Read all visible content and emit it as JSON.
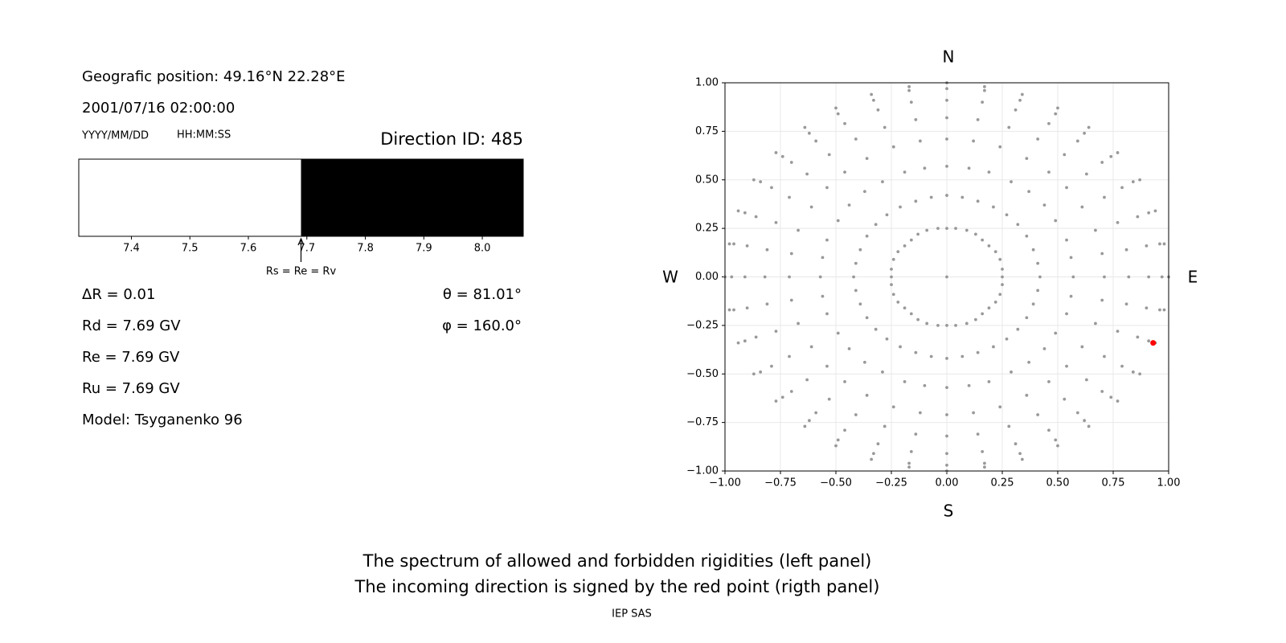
{
  "info": {
    "position": "Geografic position: 49.16°N 22.28°E",
    "datetime": "2001/07/16 02:00:00",
    "date_format": "YYYY/MM/DD",
    "time_format": "HH:MM:SS",
    "delta_r": "ΔR = 0.01",
    "rd": "Rd = 7.69 GV",
    "re": "Re = 7.69 GV",
    "ru": "Ru = 7.69 GV",
    "model": "Model: Tsyganenko 96",
    "theta": "θ = 81.01°",
    "phi": "φ = 160.0°"
  },
  "caption": {
    "line1": "The spectrum of allowed and forbidden rigidities (left panel)",
    "line2": "The incoming direction is signed by the red point (rigth panel)",
    "credit": "IEP SAS"
  },
  "chart_data": [
    {
      "type": "spectrum",
      "title": "Direction ID: 485",
      "xlim": [
        7.31,
        8.07
      ],
      "xticks": [
        7.4,
        7.5,
        7.6,
        7.7,
        7.8,
        7.9,
        {
          "value": 8,
          "label": "8.0"
        }
      ],
      "segments": [
        {
          "from": 7.31,
          "to": 7.69,
          "color": "#ffffff"
        },
        {
          "from": 7.69,
          "to": 8.07,
          "color": "#000000"
        }
      ],
      "annotation": {
        "text": "Rs = Re = Rv",
        "x": 7.69
      }
    },
    {
      "type": "scatter",
      "labels": {
        "top": "N",
        "bottom": "S",
        "left": "W",
        "right": "E"
      },
      "xlim": [
        -1,
        1
      ],
      "ylim": [
        -1,
        1
      ],
      "xticks": [
        {
          "value": -1,
          "label": "−1.00"
        },
        {
          "value": -0.75,
          "label": "−0.75"
        },
        {
          "value": -0.5,
          "label": "−0.50"
        },
        {
          "value": -0.25,
          "label": "−0.25"
        },
        {
          "value": 0,
          "label": "0.00"
        },
        {
          "value": 0.25,
          "label": "0.25"
        },
        {
          "value": 0.5,
          "label": "0.50"
        },
        {
          "value": 0.75,
          "label": "0.75"
        },
        {
          "value": 1,
          "label": "1.00"
        }
      ],
      "yticks": [
        {
          "value": -1,
          "label": "−1.00"
        },
        {
          "value": -0.75,
          "label": "−0.75"
        },
        {
          "value": -0.5,
          "label": "−0.50"
        },
        {
          "value": -0.25,
          "label": "−0.25"
        },
        {
          "value": 0,
          "label": "0.00"
        },
        {
          "value": 0.25,
          "label": "0.25"
        },
        {
          "value": 0.5,
          "label": "0.50"
        },
        {
          "value": 0.75,
          "label": "0.75"
        },
        {
          "value": 1,
          "label": "1.00"
        }
      ],
      "grid": true,
      "series": [
        {
          "color": "#999999",
          "x": [
            0,
            0.25,
            0.25,
            0.24,
            0.22,
            0.19,
            0.16,
            0.13,
            0.09,
            0.04,
            0,
            -0.04,
            -0.09,
            -0.13,
            -0.16,
            -0.19,
            -0.22,
            -0.24,
            -0.25,
            -0.25,
            -0.25,
            -0.24,
            -0.22,
            -0.19,
            -0.16,
            -0.13,
            -0.09,
            -0.04,
            0,
            0.04,
            0.09,
            0.13,
            0.16,
            0.19,
            0.22,
            0.24,
            0.25
          ],
          "y": [
            0,
            0,
            0.04,
            0.09,
            0.13,
            0.16,
            0.19,
            0.22,
            0.24,
            0.25,
            0.25,
            0.25,
            0.24,
            0.22,
            0.19,
            0.16,
            0.13,
            0.09,
            0.04,
            0,
            -0.04,
            -0.09,
            -0.13,
            -0.16,
            -0.19,
            -0.22,
            -0.24,
            -0.25,
            -0.25,
            -0.25,
            -0.24,
            -0.22,
            -0.19,
            -0.16,
            -0.13,
            -0.09,
            -0.04
          ]
        },
        {
          "color": "#999999",
          "x": [
            0.42,
            0.57,
            0.71,
            0.82,
            0.91,
            0.97,
            1
          ],
          "y": [
            0,
            0,
            0,
            0,
            0,
            0,
            0
          ]
        },
        {
          "color": "#999999",
          "x": [
            0.41,
            0.56,
            0.7,
            0.81,
            0.9,
            0.96,
            0.98
          ],
          "y": [
            0.07,
            0.1,
            0.12,
            0.14,
            0.16,
            0.17,
            0.17
          ]
        },
        {
          "color": "#999999",
          "x": [
            0.39,
            0.54,
            0.67,
            0.77,
            0.86,
            0.91,
            0.94
          ],
          "y": [
            0.14,
            0.19,
            0.24,
            0.28,
            0.31,
            0.33,
            0.34
          ]
        },
        {
          "color": "#999999",
          "x": [
            0.36,
            0.49,
            0.61,
            0.71,
            0.79,
            0.84,
            0.87
          ],
          "y": [
            0.21,
            0.29,
            0.36,
            0.41,
            0.46,
            0.49,
            0.5
          ]
        },
        {
          "color": "#999999",
          "x": [
            0.32,
            0.44,
            0.54,
            0.63,
            0.7,
            0.74,
            0.77
          ],
          "y": [
            0.27,
            0.37,
            0.46,
            0.53,
            0.59,
            0.62,
            0.64
          ]
        },
        {
          "color": "#999999",
          "x": [
            0.27,
            0.37,
            0.46,
            0.53,
            0.59,
            0.62,
            0.64
          ],
          "y": [
            0.32,
            0.44,
            0.54,
            0.63,
            0.7,
            0.74,
            0.77
          ]
        },
        {
          "color": "#999999",
          "x": [
            0.21,
            0.29,
            0.36,
            0.41,
            0.46,
            0.49,
            0.5
          ],
          "y": [
            0.36,
            0.49,
            0.61,
            0.71,
            0.79,
            0.84,
            0.87
          ]
        },
        {
          "color": "#999999",
          "x": [
            0.14,
            0.19,
            0.24,
            0.28,
            0.31,
            0.33,
            0.34
          ],
          "y": [
            0.39,
            0.54,
            0.67,
            0.77,
            0.86,
            0.91,
            0.94
          ]
        },
        {
          "color": "#999999",
          "x": [
            0.07,
            0.1,
            0.12,
            0.14,
            0.16,
            0.17,
            0.17
          ],
          "y": [
            0.41,
            0.56,
            0.7,
            0.81,
            0.9,
            0.96,
            0.98
          ]
        },
        {
          "color": "#999999",
          "x": [
            0,
            0,
            0,
            0,
            0,
            0,
            0
          ],
          "y": [
            0.42,
            0.57,
            0.71,
            0.82,
            0.91,
            0.97,
            1
          ]
        },
        {
          "color": "#999999",
          "x": [
            -0.07,
            -0.1,
            -0.12,
            -0.14,
            -0.16,
            -0.17,
            -0.17
          ],
          "y": [
            0.41,
            0.56,
            0.7,
            0.81,
            0.9,
            0.96,
            0.98
          ]
        },
        {
          "color": "#999999",
          "x": [
            -0.14,
            -0.19,
            -0.24,
            -0.28,
            -0.31,
            -0.33,
            -0.34
          ],
          "y": [
            0.39,
            0.54,
            0.67,
            0.77,
            0.86,
            0.91,
            0.94
          ]
        },
        {
          "color": "#999999",
          "x": [
            -0.21,
            -0.29,
            -0.36,
            -0.41,
            -0.46,
            -0.49,
            -0.5
          ],
          "y": [
            0.36,
            0.49,
            0.61,
            0.71,
            0.79,
            0.84,
            0.87
          ]
        },
        {
          "color": "#999999",
          "x": [
            -0.27,
            -0.37,
            -0.46,
            -0.53,
            -0.59,
            -0.62,
            -0.64
          ],
          "y": [
            0.32,
            0.44,
            0.54,
            0.63,
            0.7,
            0.74,
            0.77
          ]
        },
        {
          "color": "#999999",
          "x": [
            -0.32,
            -0.44,
            -0.54,
            -0.63,
            -0.7,
            -0.74,
            -0.77
          ],
          "y": [
            0.27,
            0.37,
            0.46,
            0.53,
            0.59,
            0.62,
            0.64
          ]
        },
        {
          "color": "#999999",
          "x": [
            -0.36,
            -0.49,
            -0.61,
            -0.71,
            -0.79,
            -0.84,
            -0.87
          ],
          "y": [
            0.21,
            0.29,
            0.36,
            0.41,
            0.46,
            0.49,
            0.5
          ]
        },
        {
          "color": "#999999",
          "x": [
            -0.39,
            -0.54,
            -0.67,
            -0.77,
            -0.86,
            -0.91,
            -0.94
          ],
          "y": [
            0.14,
            0.19,
            0.24,
            0.28,
            0.31,
            0.33,
            0.34
          ]
        },
        {
          "color": "#999999",
          "x": [
            -0.41,
            -0.56,
            -0.7,
            -0.81,
            -0.9,
            -0.96,
            -0.98
          ],
          "y": [
            0.07,
            0.1,
            0.12,
            0.14,
            0.16,
            0.17,
            0.17
          ]
        },
        {
          "color": "#999999",
          "x": [
            -0.42,
            -0.57,
            -0.71,
            -0.82,
            -0.91,
            -0.97,
            -1
          ],
          "y": [
            0,
            0,
            0,
            0,
            0,
            0,
            0
          ]
        },
        {
          "color": "#999999",
          "x": [
            -0.41,
            -0.56,
            -0.7,
            -0.81,
            -0.9,
            -0.96,
            -0.98
          ],
          "y": [
            -0.07,
            -0.1,
            -0.12,
            -0.14,
            -0.16,
            -0.17,
            -0.17
          ]
        },
        {
          "color": "#999999",
          "x": [
            -0.39,
            -0.54,
            -0.67,
            -0.77,
            -0.86,
            -0.91,
            -0.94
          ],
          "y": [
            -0.14,
            -0.19,
            -0.24,
            -0.28,
            -0.31,
            -0.33,
            -0.34
          ]
        },
        {
          "color": "#999999",
          "x": [
            -0.36,
            -0.49,
            -0.61,
            -0.71,
            -0.79,
            -0.84,
            -0.87
          ],
          "y": [
            -0.21,
            -0.29,
            -0.36,
            -0.41,
            -0.46,
            -0.49,
            -0.5
          ]
        },
        {
          "color": "#999999",
          "x": [
            -0.32,
            -0.44,
            -0.54,
            -0.63,
            -0.7,
            -0.74,
            -0.77
          ],
          "y": [
            -0.27,
            -0.37,
            -0.46,
            -0.53,
            -0.59,
            -0.62,
            -0.64
          ]
        },
        {
          "color": "#999999",
          "x": [
            -0.27,
            -0.37,
            -0.46,
            -0.53,
            -0.59,
            -0.62,
            -0.64
          ],
          "y": [
            -0.32,
            -0.44,
            -0.54,
            -0.63,
            -0.7,
            -0.74,
            -0.77
          ]
        },
        {
          "color": "#999999",
          "x": [
            -0.21,
            -0.29,
            -0.36,
            -0.41,
            -0.46,
            -0.49,
            -0.5
          ],
          "y": [
            -0.36,
            -0.49,
            -0.61,
            -0.71,
            -0.79,
            -0.84,
            -0.87
          ]
        },
        {
          "color": "#999999",
          "x": [
            -0.14,
            -0.19,
            -0.24,
            -0.28,
            -0.31,
            -0.33,
            -0.34
          ],
          "y": [
            -0.39,
            -0.54,
            -0.67,
            -0.77,
            -0.86,
            -0.91,
            -0.94
          ]
        },
        {
          "color": "#999999",
          "x": [
            -0.07,
            -0.1,
            -0.12,
            -0.14,
            -0.16,
            -0.17,
            -0.17
          ],
          "y": [
            -0.41,
            -0.56,
            -0.7,
            -0.81,
            -0.9,
            -0.96,
            -0.98
          ]
        },
        {
          "color": "#999999",
          "x": [
            0,
            0,
            0,
            0,
            0,
            0,
            0
          ],
          "y": [
            -0.42,
            -0.57,
            -0.71,
            -0.82,
            -0.91,
            -0.97,
            -1
          ]
        },
        {
          "color": "#999999",
          "x": [
            0.07,
            0.1,
            0.12,
            0.14,
            0.16,
            0.17,
            0.17
          ],
          "y": [
            -0.41,
            -0.56,
            -0.7,
            -0.81,
            -0.9,
            -0.96,
            -0.98
          ]
        },
        {
          "color": "#999999",
          "x": [
            0.14,
            0.19,
            0.24,
            0.28,
            0.31,
            0.33,
            0.34
          ],
          "y": [
            -0.39,
            -0.54,
            -0.67,
            -0.77,
            -0.86,
            -0.91,
            -0.94
          ]
        },
        {
          "color": "#999999",
          "x": [
            0.21,
            0.29,
            0.36,
            0.41,
            0.46,
            0.49,
            0.5
          ],
          "y": [
            -0.36,
            -0.49,
            -0.61,
            -0.71,
            -0.79,
            -0.84,
            -0.87
          ]
        },
        {
          "color": "#999999",
          "x": [
            0.27,
            0.37,
            0.46,
            0.53,
            0.59,
            0.62,
            0.64
          ],
          "y": [
            -0.32,
            -0.44,
            -0.54,
            -0.63,
            -0.7,
            -0.74,
            -0.77
          ]
        },
        {
          "color": "#999999",
          "x": [
            0.32,
            0.44,
            0.54,
            0.63,
            0.7,
            0.74,
            0.77
          ],
          "y": [
            -0.27,
            -0.37,
            -0.46,
            -0.53,
            -0.59,
            -0.62,
            -0.64
          ]
        },
        {
          "color": "#999999",
          "x": [
            0.36,
            0.49,
            0.61,
            0.71,
            0.79,
            0.84,
            0.87
          ],
          "y": [
            -0.21,
            -0.29,
            -0.36,
            -0.41,
            -0.46,
            -0.49,
            -0.5
          ]
        },
        {
          "color": "#999999",
          "x": [
            0.39,
            0.54,
            0.67,
            0.77,
            0.86,
            0.91,
            0.94
          ],
          "y": [
            -0.14,
            -0.19,
            -0.24,
            -0.28,
            -0.31,
            -0.33,
            -0.34
          ]
        },
        {
          "color": "#999999",
          "x": [
            0.41,
            0.56,
            0.7,
            0.81,
            0.9,
            0.96,
            0.98
          ],
          "y": [
            -0.07,
            -0.1,
            -0.12,
            -0.14,
            -0.16,
            -0.17,
            -0.17
          ]
        },
        {
          "color": "#ff0000",
          "x": [
            0.93
          ],
          "y": [
            -0.34
          ]
        }
      ]
    }
  ]
}
